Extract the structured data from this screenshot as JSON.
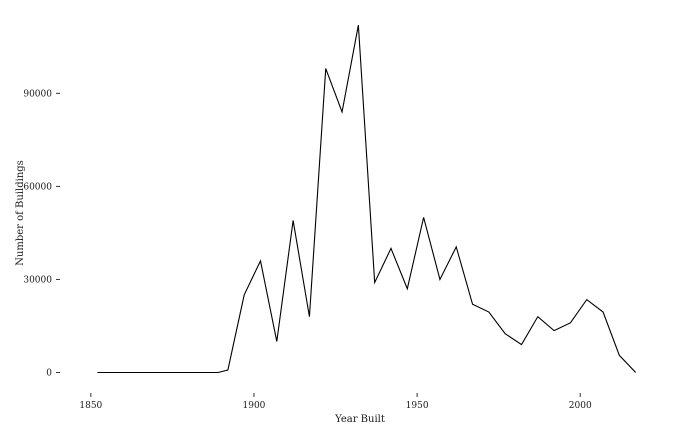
{
  "chart_data": {
    "type": "line",
    "title": "",
    "xlabel": "Year Built",
    "ylabel": "Number of Buildings",
    "xlim": [
      1843,
      2022
    ],
    "ylim": [
      -5000,
      113000
    ],
    "x_ticks": [
      1850,
      1900,
      1950,
      2000
    ],
    "y_ticks": [
      0,
      30000,
      60000,
      90000
    ],
    "x_tick_labels": [
      "1850",
      "1900",
      "1950",
      "2000"
    ],
    "y_tick_labels": [
      "0",
      "30000",
      "60000",
      "90000"
    ],
    "grid": false,
    "legend": "none",
    "line_color": "#000000",
    "x": [
      1852,
      1857,
      1862,
      1867,
      1872,
      1877,
      1882,
      1887,
      1889,
      1892,
      1897,
      1902,
      1907,
      1912,
      1917,
      1922,
      1927,
      1932,
      1937,
      1942,
      1947,
      1952,
      1957,
      1962,
      1967,
      1972,
      1977,
      1982,
      1987,
      1992,
      1997,
      2002,
      2007,
      2012,
      2017
    ],
    "y": [
      0,
      0,
      0,
      0,
      0,
      0,
      0,
      0,
      0,
      800,
      25000,
      36000,
      10000,
      49000,
      18000,
      98000,
      84000,
      112000,
      29000,
      40000,
      27000,
      50000,
      30000,
      40500,
      22000,
      19500,
      12500,
      9000,
      18000,
      13500,
      16000,
      23500,
      19500,
      5500,
      0
    ]
  }
}
